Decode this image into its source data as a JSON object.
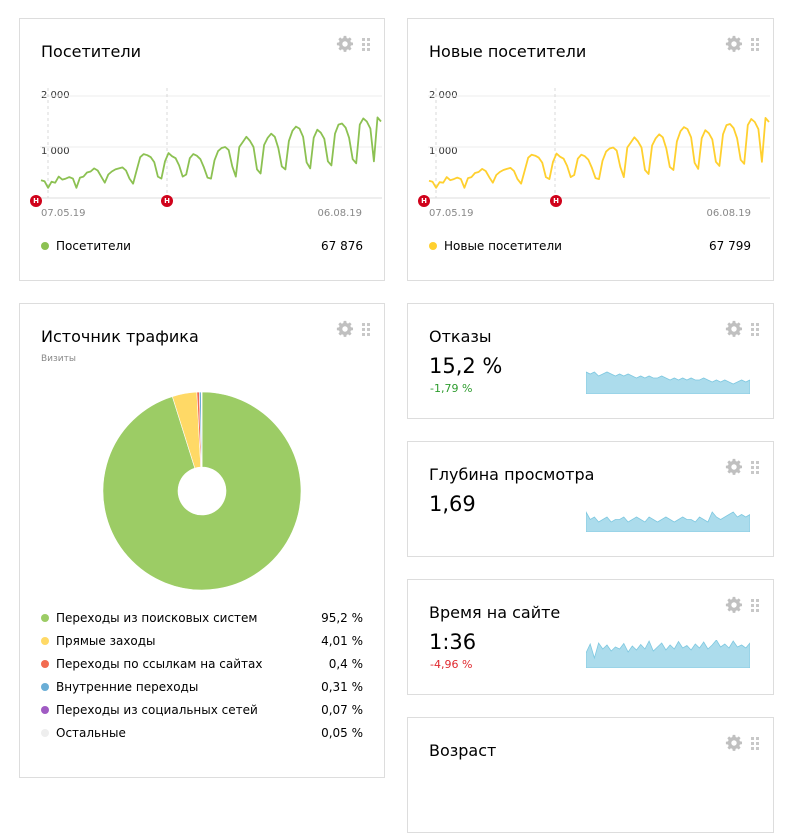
{
  "visitors": {
    "title": "Посетители",
    "y_ticks": [
      "2 000",
      "1 000"
    ],
    "date_start": "07.05.19",
    "date_end": "06.08.19",
    "marker_label": "Н",
    "legend_label": "Посетители",
    "legend_value": "67 876",
    "color": "#8cc152"
  },
  "new_visitors": {
    "title": "Новые посетители",
    "y_ticks": [
      "2 000",
      "1 000"
    ],
    "date_start": "07.05.19",
    "date_end": "06.08.19",
    "marker_label": "Н",
    "legend_label": "Новые посетители",
    "legend_value": "67 799",
    "color": "#ffd02f"
  },
  "traffic": {
    "title": "Источник трафика",
    "subtitle": "Визиты",
    "items": [
      {
        "label": "Переходы из поисковых систем",
        "value": "95,2 %",
        "color": "#9ccc65"
      },
      {
        "label": "Прямые заходы",
        "value": "4,01 %",
        "color": "#ffd966"
      },
      {
        "label": "Переходы по ссылкам на сайтах",
        "value": "0,4 %",
        "color": "#f26b50"
      },
      {
        "label": "Внутренние переходы",
        "value": "0,31 %",
        "color": "#6aaed6"
      },
      {
        "label": "Переходы из социальных сетей",
        "value": "0,07 %",
        "color": "#a05bc3"
      },
      {
        "label": "Остальные",
        "value": "0,05 %",
        "color": "#eeeeee"
      }
    ]
  },
  "bounce": {
    "title": "Отказы",
    "value": "15,2 %",
    "delta": "-1,79 %",
    "delta_color": "#2e9c2e"
  },
  "depth": {
    "title": "Глубина просмотра",
    "value": "1,69"
  },
  "time": {
    "title": "Время на сайте",
    "value": "1:36",
    "delta": "-4,96 %",
    "delta_color": "#e0282e"
  },
  "age": {
    "title": "Возраст"
  },
  "chart_data": [
    {
      "type": "line",
      "title": "Посетители",
      "x_range": [
        "07.05.19",
        "06.08.19"
      ],
      "ylim": [
        0,
        2000
      ],
      "series": [
        {
          "name": "Посетители",
          "color": "#8cc152",
          "values": [
            350,
            330,
            200,
            320,
            300,
            420,
            360,
            380,
            410,
            380,
            200,
            400,
            420,
            500,
            520,
            580,
            540,
            420,
            300,
            460,
            520,
            560,
            580,
            600,
            540,
            380,
            280,
            540,
            800,
            860,
            840,
            800,
            700,
            420,
            380,
            720,
            880,
            820,
            780,
            640,
            420,
            460,
            780,
            860,
            830,
            760,
            600,
            400,
            380,
            740,
            920,
            980,
            1000,
            940,
            620,
            420,
            1000,
            1100,
            1200,
            1120,
            1000,
            560,
            480,
            1040,
            1180,
            1260,
            1200,
            980,
            620,
            560,
            1120,
            1320,
            1400,
            1360,
            1200,
            700,
            580,
            1180,
            1340,
            1280,
            1160,
            720,
            640,
            1260,
            1440,
            1460,
            1380,
            1180,
            760,
            680,
            1440,
            1560,
            1500,
            1360,
            720,
            1580,
            1500
          ]
        }
      ]
    },
    {
      "type": "line",
      "title": "Новые посетители",
      "x_range": [
        "07.05.19",
        "06.08.19"
      ],
      "ylim": [
        0,
        2000
      ],
      "series": [
        {
          "name": "Новые посетители",
          "color": "#ffd02f",
          "values": [
            340,
            320,
            200,
            310,
            300,
            410,
            350,
            370,
            400,
            370,
            200,
            390,
            410,
            490,
            510,
            570,
            530,
            410,
            300,
            450,
            510,
            550,
            570,
            590,
            530,
            370,
            280,
            530,
            790,
            850,
            830,
            790,
            690,
            410,
            370,
            710,
            870,
            810,
            770,
            630,
            410,
            450,
            770,
            850,
            820,
            750,
            590,
            390,
            370,
            730,
            910,
            970,
            990,
            930,
            610,
            410,
            990,
            1090,
            1190,
            1110,
            990,
            550,
            470,
            1030,
            1170,
            1250,
            1190,
            970,
            610,
            550,
            1110,
            1310,
            1390,
            1350,
            1190,
            690,
            570,
            1170,
            1330,
            1270,
            1150,
            710,
            630,
            1250,
            1430,
            1450,
            1370,
            1170,
            750,
            670,
            1430,
            1550,
            1490,
            1350,
            710,
            1570,
            1490
          ]
        }
      ]
    },
    {
      "type": "pie",
      "title": "Источник трафика",
      "categories": [
        "Переходы из поисковых систем",
        "Прямые заходы",
        "Переходы по ссылкам на сайтах",
        "Внутренние переходы",
        "Переходы из социальных сетей",
        "Остальные"
      ],
      "values": [
        95.2,
        4.01,
        0.4,
        0.31,
        0.07,
        0.05
      ]
    },
    {
      "type": "area",
      "title": "Отказы",
      "series": [
        {
          "name": "Отказы",
          "values": [
            18,
            17,
            18,
            16,
            17,
            18,
            17,
            16,
            17,
            16,
            17,
            16,
            15,
            16,
            15,
            16,
            15,
            15,
            16,
            15,
            14,
            15,
            14,
            15,
            14,
            15,
            14,
            14,
            15,
            14,
            13,
            14,
            13,
            14,
            13,
            12,
            13,
            14,
            13,
            14
          ]
        }
      ]
    },
    {
      "type": "area",
      "title": "Глубина просмотра",
      "series": [
        {
          "name": "Глубина просмотра",
          "values": [
            1.72,
            1.69,
            1.7,
            1.68,
            1.69,
            1.7,
            1.68,
            1.69,
            1.69,
            1.7,
            1.68,
            1.69,
            1.7,
            1.69,
            1.68,
            1.7,
            1.69,
            1.68,
            1.69,
            1.7,
            1.69,
            1.68,
            1.69,
            1.7,
            1.69,
            1.69,
            1.68,
            1.7,
            1.69,
            1.68,
            1.72,
            1.7,
            1.69,
            1.7,
            1.71,
            1.72,
            1.7,
            1.71,
            1.7,
            1.71
          ]
        }
      ]
    },
    {
      "type": "area",
      "title": "Время на сайте",
      "series": [
        {
          "name": "Время на сайте",
          "values": [
            80,
            98,
            70,
            100,
            88,
            96,
            84,
            92,
            88,
            99,
            82,
            94,
            86,
            97,
            88,
            104,
            84,
            92,
            100,
            86,
            96,
            88,
            103,
            90,
            95,
            86,
            98,
            90,
            102,
            88,
            96,
            106,
            92,
            98,
            90,
            104,
            92,
            96,
            90,
            100
          ]
        }
      ]
    }
  ]
}
